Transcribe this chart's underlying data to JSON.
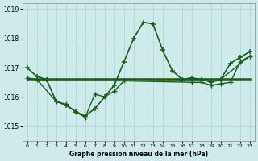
{
  "title": "Graphe pression niveau de la mer (hPa)",
  "background_color": "#ceeaea",
  "grid_color": "#aad4d4",
  "line_color": "#1a5c1a",
  "xlim": [
    -0.5,
    23.5
  ],
  "ylim": [
    1014.5,
    1019.2
  ],
  "yticks": [
    1015,
    1016,
    1017,
    1018,
    1019
  ],
  "xticks": [
    0,
    1,
    2,
    3,
    4,
    5,
    6,
    7,
    8,
    9,
    10,
    11,
    12,
    13,
    14,
    15,
    16,
    17,
    18,
    19,
    20,
    21,
    22,
    23
  ],
  "series1_x": [
    0,
    1,
    2,
    3,
    4,
    5,
    6,
    7,
    8,
    9,
    10,
    11,
    12,
    13,
    14,
    15,
    16,
    17,
    18,
    19,
    20,
    21,
    22,
    23
  ],
  "series1_y": [
    1017.0,
    1016.7,
    1016.6,
    1015.85,
    1015.72,
    1015.5,
    1015.35,
    1015.6,
    1016.0,
    1016.4,
    1017.2,
    1018.0,
    1018.55,
    1018.5,
    1017.6,
    1016.9,
    1016.6,
    1016.65,
    1016.6,
    1016.5,
    1016.6,
    1017.15,
    1017.35,
    1017.55
  ],
  "series2_x": [
    0,
    1,
    3,
    4,
    5,
    6,
    7,
    8,
    9,
    10,
    17,
    18,
    19,
    20,
    21,
    22,
    23
  ],
  "series2_y": [
    1016.65,
    1016.6,
    1015.85,
    1015.75,
    1015.5,
    1015.3,
    1016.1,
    1016.0,
    1016.2,
    1016.55,
    1016.5,
    1016.5,
    1016.4,
    1016.45,
    1016.5,
    1017.2,
    1017.4
  ],
  "series3_x": [
    0,
    10,
    20,
    23
  ],
  "series3_y": [
    1016.62,
    1016.62,
    1016.62,
    1016.62
  ],
  "series4_x": [
    1,
    20,
    23
  ],
  "series4_y": [
    1016.6,
    1016.6,
    1017.4
  ]
}
